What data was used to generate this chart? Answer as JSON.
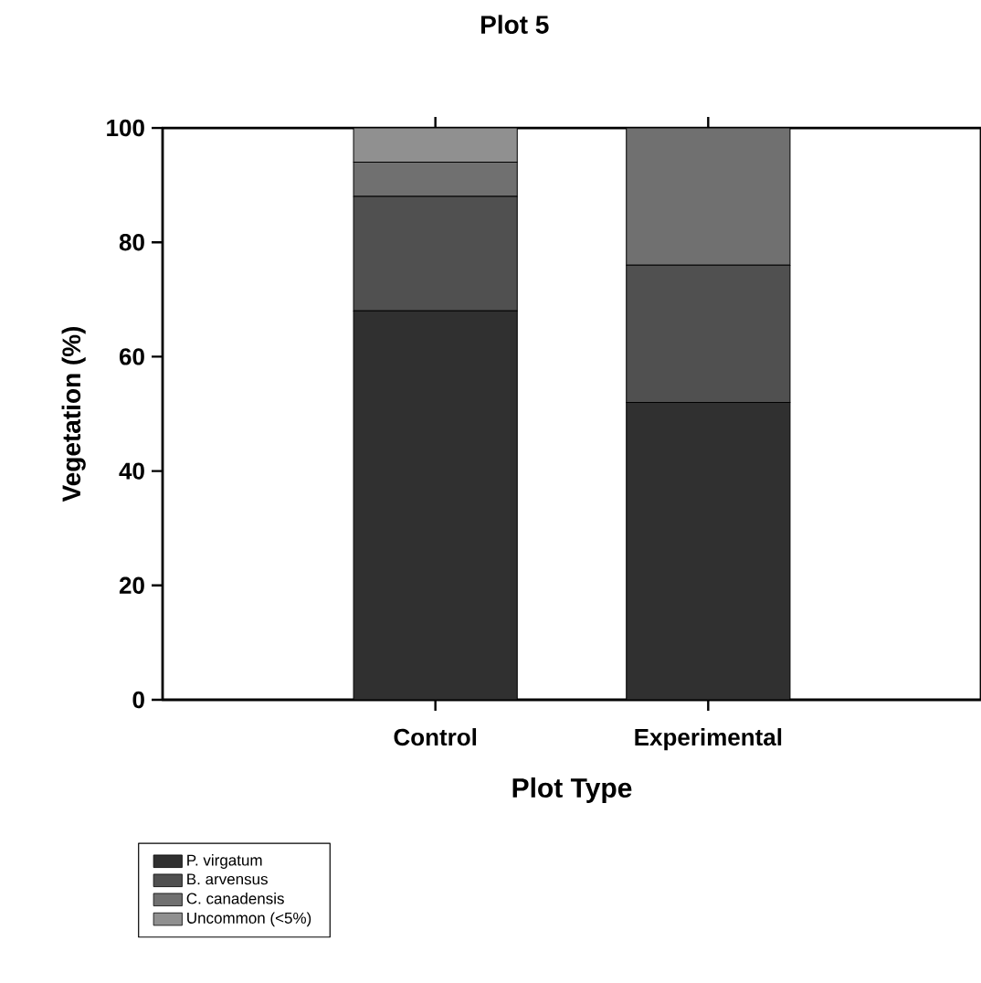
{
  "chart_data": {
    "type": "bar",
    "title": "Plot 5",
    "xlabel": "Plot Type",
    "ylabel": "Vegetation (%)",
    "categories": [
      "Control",
      "Experimental"
    ],
    "stacked": true,
    "series": [
      {
        "name": "P. virgatum",
        "color": "#303030",
        "values": [
          68,
          52
        ]
      },
      {
        "name": "B. arvensus",
        "color": "#505050",
        "values": [
          20,
          24
        ]
      },
      {
        "name": "C. canadensis",
        "color": "#707070",
        "values": [
          6,
          24
        ]
      },
      {
        "name": "Uncommon (<5%)",
        "color": "#909090",
        "values": [
          6,
          0
        ]
      }
    ],
    "ylim": [
      0,
      100
    ],
    "yticks": [
      0,
      20,
      40,
      60,
      80,
      100
    ],
    "grid": false,
    "legend": "bottom left"
  }
}
